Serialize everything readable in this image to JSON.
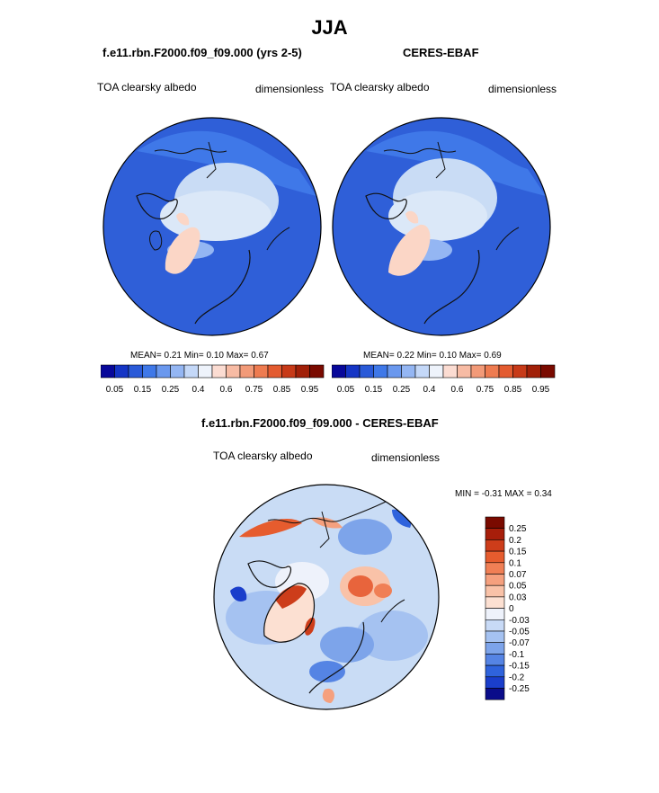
{
  "page_title": "JJA",
  "panel_left": {
    "title": "f.e11.rbn.F2000.f09_f09.000 (yrs 2-5)",
    "var_label": "TOA clearsky albedo",
    "units": "dimensionless",
    "stats": "MEAN=   0.21  Min=   0.10  Max=   0.67"
  },
  "panel_right": {
    "title": "CERES-EBAF",
    "var_label": "TOA clearsky albedo",
    "units": "dimensionless",
    "stats": "MEAN=   0.22  Min=   0.10  Max=   0.69"
  },
  "panel_diff": {
    "title": "f.e11.rbn.F2000.f09_f09.000 - CERES-EBAF",
    "var_label": "TOA clearsky albedo",
    "units": "dimensionless",
    "stats": "MIN =  -0.31 MAX =   0.34"
  },
  "colorbar_abs": {
    "colors": [
      "#08089a",
      "#1535c5",
      "#2a5ad8",
      "#3f78e8",
      "#6a98ee",
      "#94b6f3",
      "#c4d8f8",
      "#eef3fb",
      "#fbdcd2",
      "#f7bba4",
      "#f29a78",
      "#ee7b50",
      "#e35b30",
      "#c73a18",
      "#a12008",
      "#7a0a00"
    ],
    "labels": [
      "0.05",
      "0.15",
      "0.25",
      "0.4",
      "0.6",
      "0.75",
      "0.85",
      "0.95"
    ]
  },
  "colorbar_diff": {
    "colors": [
      "#7a0a00",
      "#a71e0a",
      "#cd3d1a",
      "#e65c2e",
      "#f07f55",
      "#f5a07e",
      "#f9c2a8",
      "#fce0d2",
      "#eef2fb",
      "#c8daf6",
      "#a5c2f1",
      "#7da4ea",
      "#5584e4",
      "#2f63dc",
      "#1a3ecb",
      "#0a0c8a"
    ],
    "labels": [
      "0.25",
      "0.2",
      "0.15",
      "0.1",
      "0.07",
      "0.05",
      "0.03",
      "0",
      "-0.03",
      "-0.05",
      "-0.07",
      "-0.1",
      "-0.15",
      "-0.2",
      "-0.25"
    ]
  },
  "map_colors": {
    "ocean_abs": "#2f5fd8",
    "ice_abs": "#dbe8f8",
    "land_warm": "#fbd6c6",
    "diff_base": "#c9dcf5",
    "diff_red": "#e8643c"
  }
}
